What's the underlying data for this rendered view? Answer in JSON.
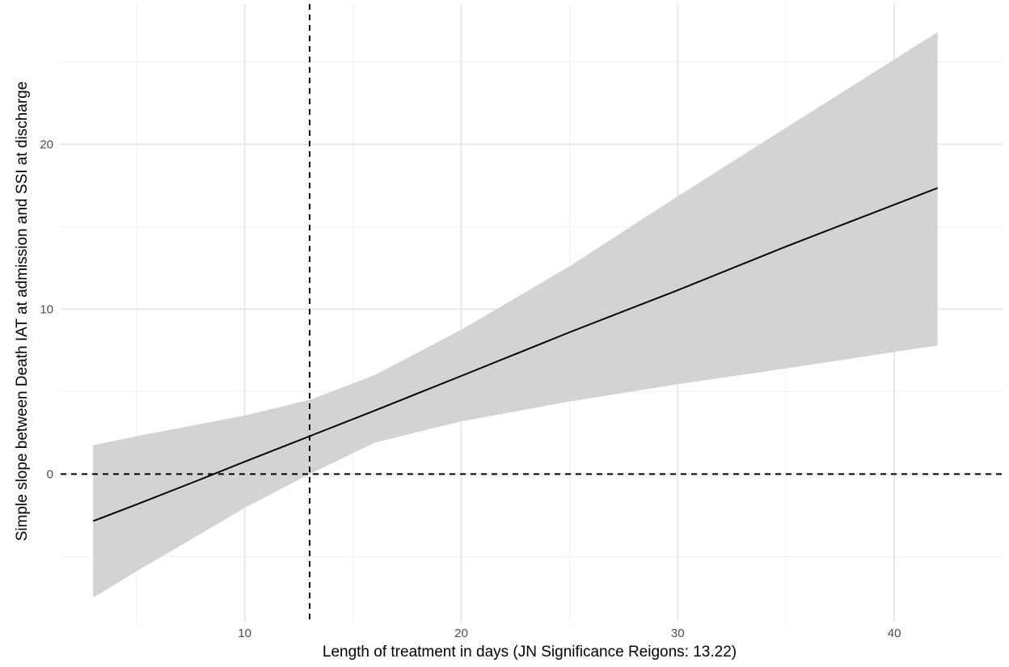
{
  "chart_data": {
    "type": "line",
    "xlabel": "Length of treatment in days (JN Significance Reigons: 13.22)",
    "ylabel": "Simple slope between Death IAT at admission and SSI at discharge",
    "xlim": [
      1.5,
      45
    ],
    "ylim": [
      -9,
      28.5
    ],
    "x_ticks": [
      10,
      20,
      30,
      40
    ],
    "y_ticks": [
      0,
      10,
      20
    ],
    "x_minor_grid": [
      5,
      15,
      25,
      35
    ],
    "y_minor_grid": [
      -5,
      5,
      15,
      25
    ],
    "grid": true,
    "reference_lines": [
      {
        "orientation": "vertical",
        "value": 13.0,
        "style": "dashed"
      },
      {
        "orientation": "horizontal",
        "value": 0,
        "style": "dashed"
      }
    ],
    "series": [
      {
        "points": [
          {
            "x": 3,
            "y": -2.85,
            "lower": -7.5,
            "upper": 1.75
          },
          {
            "x": 5,
            "y": -1.85,
            "lower": -5.9,
            "upper": 2.3
          },
          {
            "x": 8,
            "y": -0.3,
            "lower": -3.6,
            "upper": 3.05
          },
          {
            "x": 10,
            "y": 0.75,
            "lower": -2.05,
            "upper": 3.55
          },
          {
            "x": 13,
            "y": 2.3,
            "lower": 0.0,
            "upper": 4.5
          },
          {
            "x": 16,
            "y": 3.85,
            "lower": 1.9,
            "upper": 6.0
          },
          {
            "x": 20,
            "y": 5.95,
            "lower": 3.2,
            "upper": 8.75
          },
          {
            "x": 25,
            "y": 8.6,
            "lower": 4.4,
            "upper": 12.6
          },
          {
            "x": 30,
            "y": 11.15,
            "lower": 5.45,
            "upper": 16.85
          },
          {
            "x": 35,
            "y": 13.8,
            "lower": 6.4,
            "upper": 21.0
          },
          {
            "x": 42,
            "y": 17.35,
            "lower": 7.8,
            "upper": 26.8
          }
        ],
        "color": "#000000",
        "band_color": "#d3d3d3"
      }
    ]
  }
}
